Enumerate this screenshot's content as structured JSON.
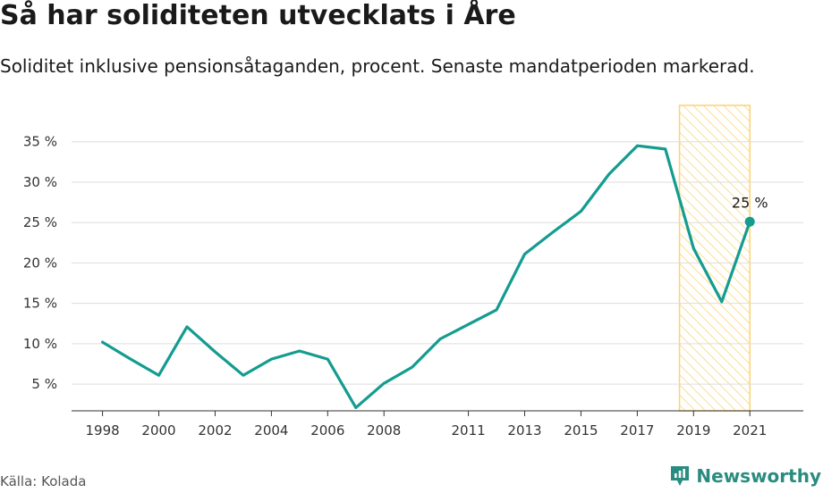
{
  "header": {
    "title": "Så har soliditeten utvecklats i Åre",
    "subtitle": "Soliditet inklusive pensionsåtaganden, procent. Senaste mandatperioden markerad."
  },
  "footer": {
    "source": "Källa: Kolada",
    "brand": "Newsworthy"
  },
  "chart_data": {
    "type": "line",
    "title": "Så har soliditeten utvecklats i Åre",
    "subtitle": "Soliditet inklusive pensionsåtaganden, procent. Senaste mandatperioden markerad.",
    "xlabel": "",
    "ylabel": "",
    "x": [
      1998,
      1999,
      2000,
      2001,
      2002,
      2003,
      2004,
      2005,
      2006,
      2007,
      2008,
      2009,
      2010,
      2011,
      2012,
      2013,
      2014,
      2015,
      2016,
      2017,
      2018,
      2019,
      2020,
      2021
    ],
    "series": [
      {
        "values": [
          10.2,
          8.1,
          6.1,
          12.1,
          9.0,
          6.1,
          8.1,
          9.1,
          8.1,
          2.1,
          5.1,
          7.1,
          10.6,
          12.4,
          14.2,
          21.1,
          23.8,
          26.4,
          31.0,
          34.5,
          34.1,
          21.8,
          15.2,
          25.1
        ]
      }
    ],
    "x_ticks": [
      "1998",
      "2000",
      "2002",
      "2004",
      "2006",
      "2008",
      "2011",
      "2013",
      "2015",
      "2017",
      "2019",
      "2021"
    ],
    "y_ticks": [
      "5 %",
      "10 %",
      "15 %",
      "20 %",
      "25 %",
      "30 %",
      "35 %"
    ],
    "xlim": [
      1996.9,
      2022.9
    ],
    "ylim": [
      1.7,
      39.5
    ],
    "grid": true,
    "highlight_period": [
      2018.5,
      2021
    ],
    "annotation": {
      "x": 2021,
      "y": 25.1,
      "label": "25 %"
    },
    "colors": {
      "line": "#139c8f",
      "highlight": "#fbd472",
      "grid": "#dddddd",
      "axis": "#333333"
    }
  }
}
